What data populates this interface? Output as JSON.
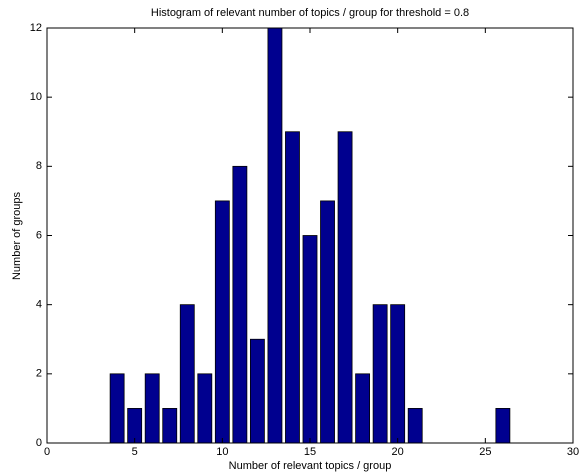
{
  "chart_data": {
    "type": "bar",
    "title": "Histogram of relevant number of topics / group for threshold = 0.8",
    "x_label": "Number of relevant topics / group",
    "y_label": "Number of groups",
    "x": [
      4,
      5,
      6,
      7,
      8,
      9,
      10,
      11,
      12,
      13,
      14,
      15,
      16,
      17,
      18,
      19,
      20,
      21,
      26
    ],
    "values": [
      2,
      1,
      2,
      1,
      4,
      2,
      7,
      8,
      3,
      12,
      9,
      6,
      7,
      9,
      2,
      4,
      4,
      1,
      1
    ],
    "color": "#00008f",
    "xlim": [
      0,
      30
    ],
    "xticks": [
      0,
      5,
      10,
      15,
      20,
      25,
      30
    ],
    "ylim": [
      0,
      12
    ],
    "yticks": [
      0,
      2,
      4,
      6,
      8,
      10,
      12
    ],
    "grid": false
  }
}
